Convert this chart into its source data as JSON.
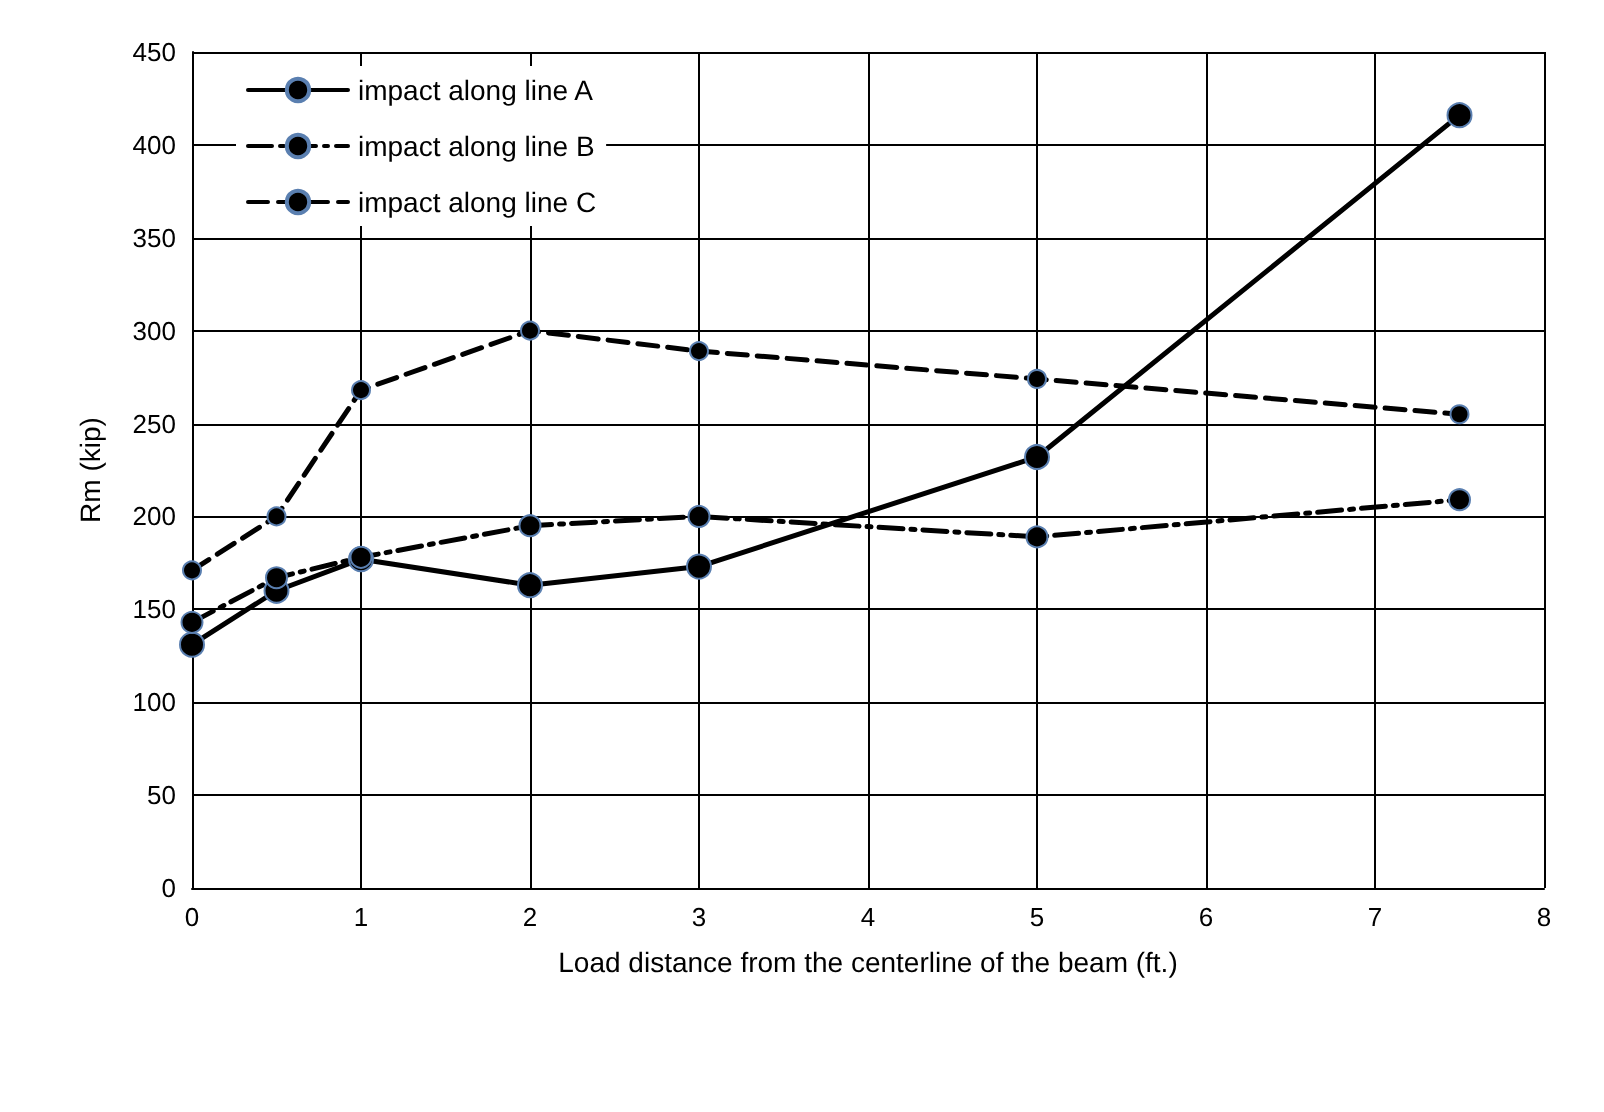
{
  "chart_data": {
    "type": "line",
    "xlabel": "Load distance from the centerline of the beam (ft.)",
    "ylabel": "Rm (kip)",
    "xlim": [
      0,
      8
    ],
    "xticks": [
      0,
      1,
      2,
      3,
      4,
      5,
      6,
      7,
      8
    ],
    "ylim": [
      0,
      450
    ],
    "yticks": [
      0,
      50,
      100,
      150,
      200,
      250,
      300,
      350,
      400,
      450
    ],
    "grid": true,
    "legend": "top left",
    "marker": "circle",
    "series": [
      {
        "name": "impact along line A",
        "color": "#000000",
        "line_style": "solid",
        "x": [
          0,
          0.5,
          1,
          2,
          3,
          5,
          7.5
        ],
        "values": [
          131,
          160,
          177,
          163,
          173,
          232,
          416
        ]
      },
      {
        "name": "impact along line B",
        "color": "#000000",
        "line_style": "dashdot",
        "x": [
          0,
          0.5,
          1,
          2,
          3,
          5,
          7.5
        ],
        "values": [
          143,
          167,
          178,
          195,
          200,
          189,
          209
        ]
      },
      {
        "name": "impact along line C",
        "color": "#000000",
        "line_style": "dashed",
        "x": [
          0,
          0.5,
          1,
          2,
          3,
          5,
          7.5
        ],
        "values": [
          171,
          200,
          268,
          300,
          289,
          274,
          255
        ]
      }
    ]
  }
}
